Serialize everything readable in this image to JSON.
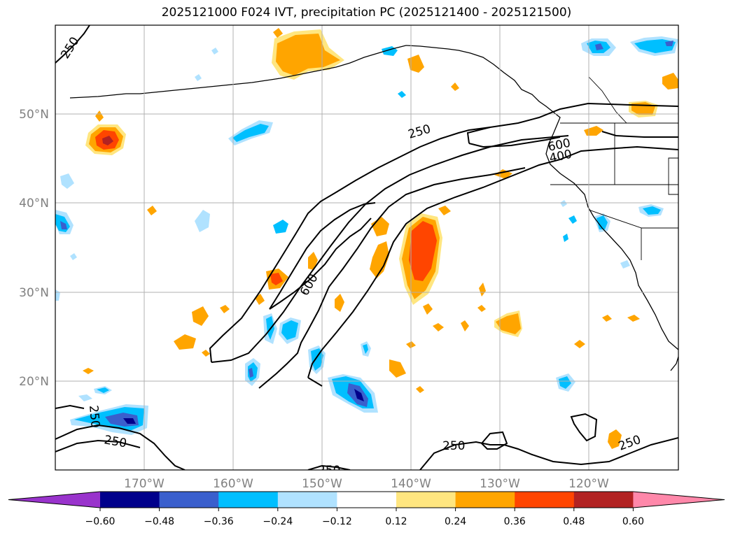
{
  "title": "2025121000 F024 IVT, precipitation PC (2025121400 - 2025121500)",
  "lat_ticks": [
    "50°N",
    "40°N",
    "30°N",
    "20°N"
  ],
  "lon_ticks": [
    "170°W",
    "160°W",
    "150°W",
    "140°W",
    "130°W",
    "120°W"
  ],
  "contour_labels": [
    "250",
    "250",
    "600",
    "400",
    "600",
    "250",
    "250",
    "250",
    "250",
    "250"
  ],
  "colorbar": {
    "ticks": [
      "−0.60",
      "−0.48",
      "−0.36",
      "−0.24",
      "−0.12",
      "0.12",
      "0.24",
      "0.36",
      "0.48",
      "0.60"
    ],
    "colors": [
      "#9933cc",
      "#00008b",
      "#3a5fcd",
      "#00bfff",
      "#b0e2ff",
      "#ffffff",
      "#ffe680",
      "#ffa500",
      "#ff4500",
      "#b22222",
      "#ff88aa"
    ]
  }
}
